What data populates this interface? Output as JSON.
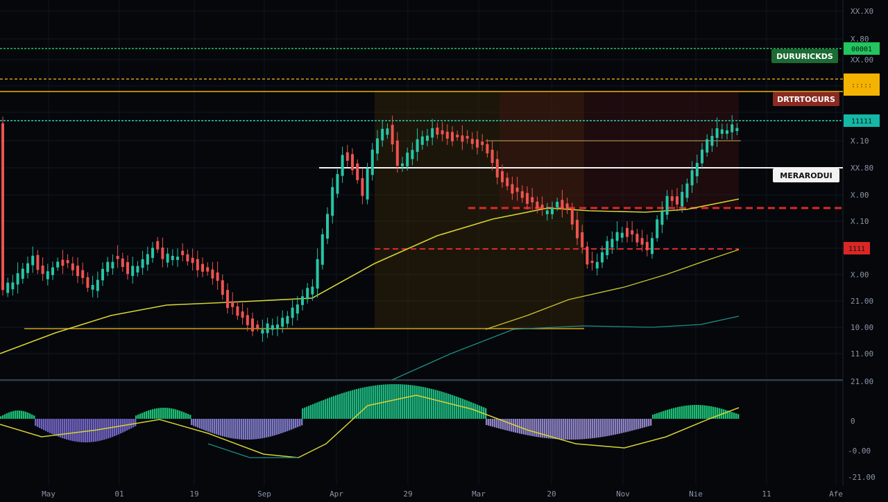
{
  "chart_data": {
    "type": "candlestick",
    "x_ticks": [
      "May",
      "01",
      "19",
      "Sep",
      "Apr",
      "29",
      "Mar",
      "20",
      "Nov",
      "Nie",
      "11",
      "Afe"
    ],
    "y_ticks": [
      "XX.X0",
      "X.80",
      "XX.00",
      "X.10",
      "XX.80",
      "X.00",
      "X.10",
      "X.00",
      "21.00",
      "10.00",
      "11.00",
      "21.00"
    ],
    "oscillator_ticks": [
      "0",
      "-0.00",
      "-21.00"
    ],
    "level_tags": [
      {
        "text": "DURURICKDS",
        "color": "#1d6b34"
      },
      {
        "text": "DRTRTOGURS",
        "color": "#8a2a22"
      },
      {
        "text": "MERARODUI",
        "color": "#f2f2f2"
      }
    ],
    "axis_tags": [
      {
        "text": "00001",
        "color": "#22c55e"
      },
      {
        "text": ":::::",
        "color": "#f5b301"
      },
      {
        "text": "11111",
        "color": "#14b8a6"
      },
      {
        "text": "1111",
        "color": "#dc2626"
      }
    ],
    "bias": [
      0.15,
      -0.2,
      0.3,
      -0.25,
      0.1,
      0.35,
      -0.3,
      0.2,
      -0.1,
      0.25,
      0.45,
      -0.15,
      0.2,
      -0.35,
      0.1,
      0.3,
      -0.25,
      0.15,
      -0.05,
      0.4
    ],
    "candle_colors": {
      "up": "#26c6a6",
      "down": "#ef5350"
    },
    "price_path": [
      [
        0,
        420
      ],
      [
        25,
        398
      ],
      [
        45,
        368
      ],
      [
        60,
        398
      ],
      [
        78,
        378
      ],
      [
        95,
        382
      ],
      [
        110,
        392
      ],
      [
        130,
        418
      ],
      [
        148,
        386
      ],
      [
        165,
        372
      ],
      [
        185,
        392
      ],
      [
        205,
        376
      ],
      [
        220,
        352
      ],
      [
        235,
        372
      ],
      [
        255,
        366
      ],
      [
        275,
        378
      ],
      [
        292,
        390
      ],
      [
        310,
        400
      ],
      [
        328,
        440
      ],
      [
        348,
        458
      ],
      [
        368,
        476
      ],
      [
        388,
        470
      ],
      [
        410,
        460
      ],
      [
        432,
        430
      ],
      [
        452,
        408
      ],
      [
        466,
        330
      ],
      [
        480,
        270
      ],
      [
        495,
        220
      ],
      [
        508,
        240
      ],
      [
        522,
        282
      ],
      [
        540,
        200
      ],
      [
        558,
        182
      ],
      [
        575,
        242
      ],
      [
        590,
        218
      ],
      [
        608,
        196
      ],
      [
        622,
        188
      ],
      [
        640,
        196
      ],
      [
        660,
        200
      ],
      [
        680,
        206
      ],
      [
        700,
        214
      ],
      [
        716,
        250
      ],
      [
        732,
        272
      ],
      [
        750,
        282
      ],
      [
        768,
        296
      ],
      [
        785,
        304
      ],
      [
        800,
        290
      ],
      [
        818,
        306
      ],
      [
        832,
        340
      ],
      [
        848,
        384
      ],
      [
        862,
        372
      ],
      [
        880,
        342
      ],
      [
        898,
        334
      ],
      [
        915,
        344
      ],
      [
        932,
        360
      ],
      [
        948,
        316
      ],
      [
        962,
        286
      ],
      [
        978,
        292
      ],
      [
        995,
        252
      ],
      [
        1012,
        214
      ],
      [
        1028,
        190
      ],
      [
        1045,
        184
      ],
      [
        1065,
        182
      ]
    ],
    "ma_yellow": [
      [
        0,
        510
      ],
      [
        80,
        480
      ],
      [
        160,
        455
      ],
      [
        240,
        440
      ],
      [
        330,
        436
      ],
      [
        450,
        430
      ],
      [
        540,
        380
      ],
      [
        630,
        340
      ],
      [
        710,
        316
      ],
      [
        790,
        300
      ],
      [
        850,
        304
      ],
      [
        930,
        306
      ],
      [
        990,
        302
      ],
      [
        1065,
        287
      ]
    ],
    "ma_yellow2": [
      [
        700,
        475
      ],
      [
        760,
        455
      ],
      [
        820,
        432
      ],
      [
        900,
        414
      ],
      [
        960,
        396
      ],
      [
        1020,
        375
      ],
      [
        1065,
        360
      ]
    ],
    "ma_teal": [
      [
        565,
        548
      ],
      [
        650,
        510
      ],
      [
        740,
        475
      ],
      [
        840,
        470
      ],
      [
        940,
        472
      ],
      [
        1010,
        468
      ],
      [
        1065,
        456
      ]
    ],
    "h_lines": [
      {
        "y": 70,
        "color": "#22c55e",
        "dash": "3 2",
        "x1": 0,
        "x2": 1215,
        "w": 1.5
      },
      {
        "y": 114,
        "color": "#d4a017",
        "dash": "4 3",
        "x1": 0,
        "x2": 1215,
        "w": 1.5
      },
      {
        "y": 132,
        "color": "#f5b301",
        "dash": "",
        "x1": 0,
        "x2": 1215,
        "w": 1.5
      },
      {
        "y": 174,
        "color": "#2dd4bf",
        "dash": "3 2",
        "x1": 0,
        "x2": 1215,
        "w": 1.5
      },
      {
        "y": 203,
        "color": "#caa85a",
        "dash": "",
        "x1": 700,
        "x2": 1068,
        "w": 1
      },
      {
        "y": 242,
        "color": "#f5f5f5",
        "dash": "",
        "x1": 460,
        "x2": 1215,
        "w": 2
      },
      {
        "y": 300,
        "color": "#e0282a",
        "dash": "10 6",
        "x1": 675,
        "x2": 1215,
        "w": 3
      },
      {
        "y": 359,
        "color": "#e0282a",
        "dash": "8 5",
        "x1": 540,
        "x2": 1065,
        "w": 2
      },
      {
        "y": 474,
        "color": "#d4a017",
        "dash": "",
        "x1": 35,
        "x2": 842,
        "w": 1.5
      }
    ],
    "zones": [
      {
        "x1": 540,
        "x2": 842,
        "y1": 132,
        "y2": 474,
        "color": "#3a2a08",
        "opacity": 0.45
      },
      {
        "x1": 720,
        "x2": 1065,
        "y1": 132,
        "y2": 300,
        "color": "#4a1410",
        "opacity": 0.35
      }
    ],
    "histogram": {
      "segments": [
        {
          "x1": 0,
          "x2": 50,
          "h": 12,
          "color": "#1fd17f"
        },
        {
          "x1": 50,
          "x2": 195,
          "h": -34,
          "color": "#7c6fd6"
        },
        {
          "x1": 195,
          "x2": 275,
          "h": 16,
          "color": "#1fd17f"
        },
        {
          "x1": 275,
          "x2": 435,
          "h": -30,
          "color": "#8c86d9"
        },
        {
          "x1": 435,
          "x2": 700,
          "h": 50,
          "color": "#1fc98a"
        },
        {
          "x1": 700,
          "x2": 940,
          "h": -30,
          "color": "#9b8fd8"
        },
        {
          "x1": 940,
          "x2": 1065,
          "h": 20,
          "color": "#1fd17f"
        }
      ],
      "signal": [
        [
          0,
          612
        ],
        [
          60,
          630
        ],
        [
          140,
          620
        ],
        [
          230,
          605
        ],
        [
          300,
          625
        ],
        [
          380,
          655
        ],
        [
          430,
          660
        ],
        [
          470,
          640
        ],
        [
          530,
          585
        ],
        [
          600,
          570
        ],
        [
          680,
          590
        ],
        [
          760,
          620
        ],
        [
          830,
          640
        ],
        [
          900,
          646
        ],
        [
          960,
          630
        ],
        [
          1020,
          605
        ],
        [
          1065,
          588
        ]
      ],
      "signal2": [
        [
          300,
          640
        ],
        [
          360,
          660
        ],
        [
          430,
          660
        ]
      ],
      "signal_color": "#d9d431"
    }
  }
}
